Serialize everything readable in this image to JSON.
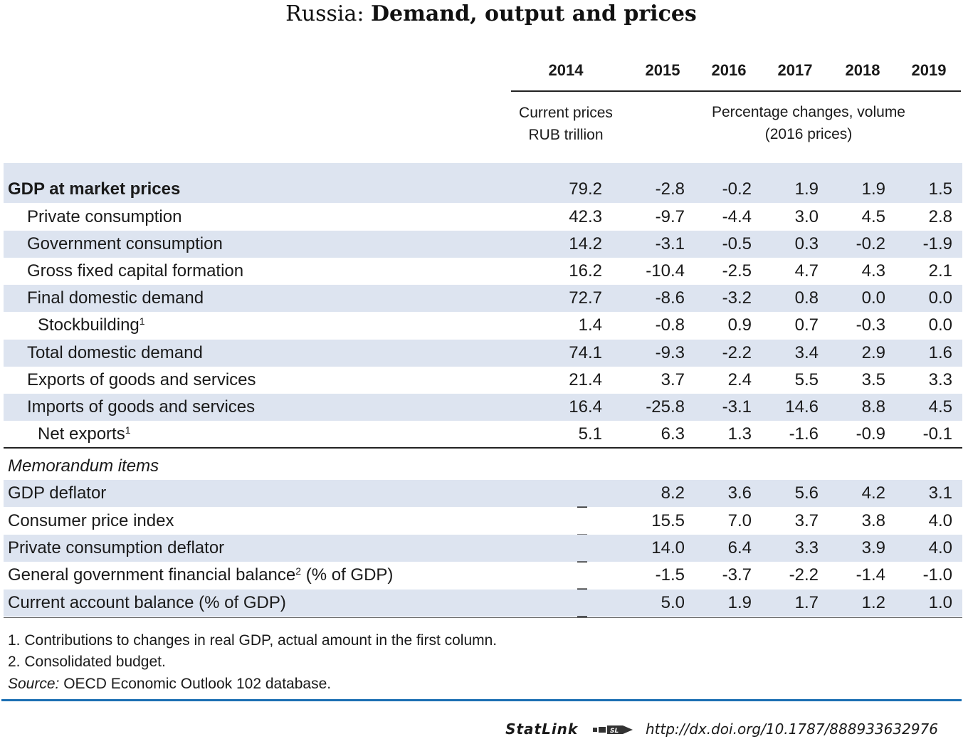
{
  "title": {
    "country": "Russia:",
    "subject": "Demand, output and prices"
  },
  "years": [
    "2014",
    "2015",
    "2016",
    "2017",
    "2018",
    "2019"
  ],
  "units": {
    "current_line1": "Current prices",
    "current_line2": "RUB trillion",
    "pct_line1": "Percentage changes, volume",
    "pct_line2": "(2016 prices)"
  },
  "rows": [
    {
      "label": "GDP at market prices",
      "sup": "",
      "values": [
        "79.2",
        "-2.8",
        "-0.2",
        "1.9",
        "1.9",
        "1.5"
      ]
    },
    {
      "label": "Private consumption",
      "sup": "",
      "values": [
        "42.3",
        "-9.7",
        "-4.4",
        "3.0",
        "4.5",
        "2.8"
      ]
    },
    {
      "label": "Government consumption",
      "sup": "",
      "values": [
        "14.2",
        "-3.1",
        "-0.5",
        "0.3",
        "-0.2",
        "-1.9"
      ]
    },
    {
      "label": "Gross fixed capital formation",
      "sup": "",
      "values": [
        "16.2",
        "-10.4",
        "-2.5",
        "4.7",
        "4.3",
        "2.1"
      ]
    },
    {
      "label": "Final domestic demand",
      "sup": "",
      "values": [
        "72.7",
        "-8.6",
        "-3.2",
        "0.8",
        "0.0",
        "0.0"
      ]
    },
    {
      "label": "Stockbuilding",
      "sup": "1",
      "values": [
        "1.4",
        "-0.8",
        "0.9",
        "0.7",
        "-0.3",
        "0.0"
      ]
    },
    {
      "label": "Total domestic demand",
      "sup": "",
      "values": [
        "74.1",
        "-9.3",
        "-2.2",
        "3.4",
        "2.9",
        "1.6"
      ]
    },
    {
      "label": "Exports of goods and services",
      "sup": "",
      "values": [
        "21.4",
        "3.7",
        "2.4",
        "5.5",
        "3.5",
        "3.3"
      ]
    },
    {
      "label": "Imports of goods and services",
      "sup": "",
      "values": [
        "16.4",
        "-25.8",
        "-3.1",
        "14.6",
        "8.8",
        "4.5"
      ]
    },
    {
      "label": "Net exports",
      "sup": "1",
      "values": [
        "5.1",
        "6.3",
        "1.3",
        "-1.6",
        "-0.9",
        "-0.1"
      ]
    }
  ],
  "memo_title": "Memorandum items",
  "memo_rows": [
    {
      "label": "GDP deflator",
      "sup": "",
      "after": "",
      "values": [
        "_",
        "8.2",
        "3.6",
        "5.6",
        "4.2",
        "3.1"
      ]
    },
    {
      "label": "Consumer price index",
      "sup": "",
      "after": "",
      "values": [
        "_",
        "15.5",
        "7.0",
        "3.7",
        "3.8",
        "4.0"
      ]
    },
    {
      "label": "Private consumption deflator",
      "sup": "",
      "after": "",
      "values": [
        "_",
        "14.0",
        "6.4",
        "3.3",
        "3.9",
        "4.0"
      ]
    },
    {
      "label": "General government financial balance",
      "sup": "2",
      "after": " (% of GDP)",
      "values": [
        "_",
        "-1.5",
        "-3.7",
        "-2.2",
        "-1.4",
        "-1.0"
      ]
    },
    {
      "label": "Current account balance (% of GDP)",
      "sup": "",
      "after": "",
      "values": [
        "_",
        "5.0",
        "1.9",
        "1.7",
        "1.2",
        "1.0"
      ]
    }
  ],
  "notes": {
    "n1": "1.  Contributions to changes in real GDP, actual amount in the first column.",
    "n2": "2.  Consolidated budget.",
    "source_label": "Source:",
    "source_text": "  OECD Economic Outlook 102 database."
  },
  "statlink": {
    "brand": "StatLink",
    "url": "http://dx.doi.org/10.1787/888933632976"
  }
}
